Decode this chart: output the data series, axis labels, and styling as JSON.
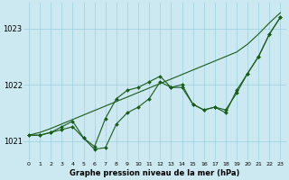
{
  "title": "Graphe pression niveau de la mer (hPa)",
  "background_color": "#cce8f0",
  "grid_color": "#9ecfde",
  "line_color": "#1a5c1a",
  "yticks": [
    1021,
    1022,
    1023
  ],
  "ylim": [
    1020.65,
    1023.45
  ],
  "xlim": [
    -0.5,
    23.5
  ],
  "series": {
    "line_jagged": [
      1021.1,
      1021.1,
      1021.15,
      1021.2,
      1021.25,
      1021.05,
      1020.85,
      1020.88,
      1021.3,
      1021.5,
      1021.6,
      1021.75,
      1022.05,
      1021.95,
      1022.0,
      1021.65,
      1021.55,
      1021.6,
      1021.55,
      1021.85,
      1022.2,
      1022.5,
      1022.9,
      1023.2
    ],
    "line_smooth": [
      1021.1,
      1021.1,
      1021.15,
      1021.25,
      1021.35,
      1021.05,
      1020.9,
      1021.4,
      1021.75,
      1021.9,
      1021.95,
      1022.05,
      1022.15,
      1021.95,
      1021.95,
      1021.65,
      1021.55,
      1021.6,
      1021.5,
      1021.9,
      1022.2,
      1022.5,
      1022.9,
      1023.2
    ],
    "line_trend": [
      1021.1,
      1021.15,
      1021.22,
      1021.3,
      1021.38,
      1021.46,
      1021.54,
      1021.62,
      1021.7,
      1021.78,
      1021.86,
      1021.94,
      1022.02,
      1022.1,
      1022.18,
      1022.26,
      1022.34,
      1022.42,
      1022.5,
      1022.58,
      1022.72,
      1022.9,
      1023.1,
      1023.28
    ]
  }
}
